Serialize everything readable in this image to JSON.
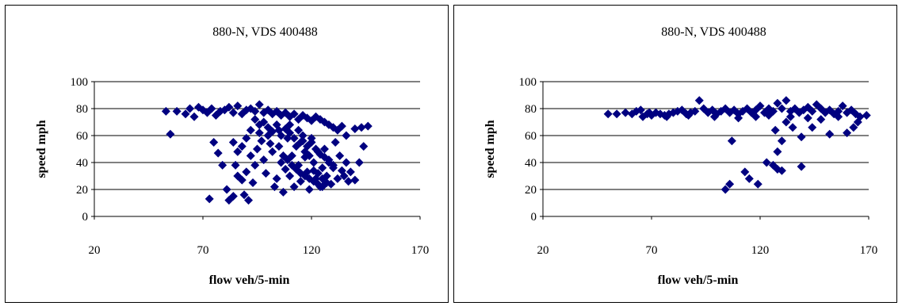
{
  "chart_data": [
    {
      "type": "scatter",
      "title": "880-N, VDS 400488",
      "xlabel": "flow veh/5-min",
      "ylabel": "speed mph",
      "xlim": [
        20,
        170
      ],
      "ylim": [
        0,
        100
      ],
      "xticks": [
        "20",
        "70",
        "120",
        "170"
      ],
      "yticks": [
        "0",
        "20",
        "40",
        "60",
        "80",
        "100"
      ],
      "grid": "horizontal",
      "marker": "diamond",
      "color": "#000080",
      "points": [
        [
          53,
          78
        ],
        [
          55,
          61
        ],
        [
          58,
          78
        ],
        [
          62,
          76
        ],
        [
          64,
          80
        ],
        [
          66,
          74
        ],
        [
          68,
          81
        ],
        [
          70,
          79
        ],
        [
          72,
          77
        ],
        [
          74,
          80
        ],
        [
          73,
          13
        ],
        [
          76,
          75
        ],
        [
          78,
          78
        ],
        [
          80,
          79
        ],
        [
          82,
          81
        ],
        [
          84,
          77
        ],
        [
          86,
          82
        ],
        [
          88,
          76
        ],
        [
          90,
          79
        ],
        [
          92,
          80
        ],
        [
          94,
          78
        ],
        [
          96,
          83
        ],
        [
          98,
          77
        ],
        [
          100,
          79
        ],
        [
          102,
          76
        ],
        [
          104,
          78
        ],
        [
          106,
          75
        ],
        [
          108,
          77
        ],
        [
          110,
          74
        ],
        [
          112,
          76
        ],
        [
          114,
          72
        ],
        [
          116,
          75
        ],
        [
          118,
          73
        ],
        [
          120,
          71
        ],
        [
          122,
          74
        ],
        [
          124,
          72
        ],
        [
          126,
          70
        ],
        [
          128,
          68
        ],
        [
          130,
          66
        ],
        [
          132,
          64
        ],
        [
          134,
          67
        ],
        [
          136,
          60
        ],
        [
          140,
          65
        ],
        [
          143,
          66
        ],
        [
          146,
          67
        ],
        [
          75,
          55
        ],
        [
          77,
          47
        ],
        [
          79,
          38
        ],
        [
          81,
          20
        ],
        [
          82,
          12
        ],
        [
          84,
          15
        ],
        [
          85,
          38
        ],
        [
          86,
          30
        ],
        [
          88,
          27
        ],
        [
          89,
          16
        ],
        [
          90,
          33
        ],
        [
          91,
          12
        ],
        [
          92,
          45
        ],
        [
          93,
          25
        ],
        [
          94,
          38
        ],
        [
          95,
          50
        ],
        [
          96,
          62
        ],
        [
          97,
          56
        ],
        [
          98,
          42
        ],
        [
          99,
          32
        ],
        [
          100,
          60
        ],
        [
          101,
          54
        ],
        [
          102,
          48
        ],
        [
          103,
          22
        ],
        [
          104,
          28
        ],
        [
          105,
          64
        ],
        [
          106,
          40
        ],
        [
          107,
          18
        ],
        [
          108,
          35
        ],
        [
          109,
          58
        ],
        [
          110,
          30
        ],
        [
          111,
          45
        ],
        [
          112,
          22
        ],
        [
          113,
          52
        ],
        [
          114,
          38
        ],
        [
          115,
          26
        ],
        [
          116,
          60
        ],
        [
          117,
          44
        ],
        [
          118,
          33
        ],
        [
          119,
          20
        ],
        [
          120,
          55
        ],
        [
          121,
          40
        ],
        [
          122,
          28
        ],
        [
          123,
          48
        ],
        [
          124,
          22
        ],
        [
          125,
          36
        ],
        [
          126,
          50
        ],
        [
          127,
          30
        ],
        [
          128,
          42
        ],
        [
          129,
          24
        ],
        [
          130,
          38
        ],
        [
          131,
          55
        ],
        [
          132,
          28
        ],
        [
          133,
          45
        ],
        [
          134,
          34
        ],
        [
          135,
          30
        ],
        [
          136,
          40
        ],
        [
          137,
          26
        ],
        [
          138,
          33
        ],
        [
          140,
          27
        ],
        [
          142,
          40
        ],
        [
          144,
          52
        ],
        [
          98,
          70
        ],
        [
          100,
          66
        ],
        [
          102,
          63
        ],
        [
          104,
          68
        ],
        [
          106,
          60
        ],
        [
          108,
          65
        ],
        [
          110,
          62
        ],
        [
          112,
          58
        ],
        [
          114,
          64
        ],
        [
          116,
          56
        ],
        [
          118,
          52
        ],
        [
          120,
          58
        ],
        [
          122,
          50
        ],
        [
          124,
          46
        ],
        [
          126,
          44
        ],
        [
          128,
          40
        ],
        [
          130,
          36
        ],
        [
          110,
          68
        ],
        [
          115,
          55
        ],
        [
          117,
          48
        ],
        [
          119,
          45
        ],
        [
          121,
          34
        ],
        [
          123,
          32
        ],
        [
          125,
          28
        ],
        [
          127,
          25
        ],
        [
          105,
          52
        ],
        [
          107,
          45
        ],
        [
          109,
          42
        ],
        [
          111,
          38
        ],
        [
          113,
          35
        ],
        [
          115,
          32
        ],
        [
          117,
          30
        ],
        [
          119,
          28
        ],
        [
          121,
          26
        ],
        [
          123,
          24
        ],
        [
          125,
          22
        ],
        [
          94,
          72
        ],
        [
          96,
          68
        ],
        [
          92,
          64
        ],
        [
          90,
          58
        ],
        [
          88,
          52
        ],
        [
          86,
          48
        ],
        [
          84,
          55
        ]
      ]
    },
    {
      "type": "scatter",
      "title": "880-N, VDS 400488",
      "xlabel": "flow veh/5-min",
      "ylabel": "speed mph",
      "xlim": [
        20,
        170
      ],
      "ylim": [
        0,
        100
      ],
      "xticks": [
        "20",
        "70",
        "120",
        "170"
      ],
      "yticks": [
        "0",
        "20",
        "40",
        "60",
        "80",
        "100"
      ],
      "grid": "horizontal",
      "marker": "diamond",
      "color": "#000080",
      "points": [
        [
          50,
          76
        ],
        [
          54,
          76
        ],
        [
          58,
          77
        ],
        [
          61,
          76
        ],
        [
          63,
          78
        ],
        [
          65,
          79
        ],
        [
          66,
          74
        ],
        [
          68,
          76
        ],
        [
          70,
          75
        ],
        [
          72,
          77
        ],
        [
          74,
          76
        ],
        [
          76,
          75
        ],
        [
          78,
          76
        ],
        [
          80,
          77
        ],
        [
          82,
          78
        ],
        [
          84,
          79
        ],
        [
          86,
          76
        ],
        [
          88,
          77
        ],
        [
          90,
          78
        ],
        [
          92,
          86
        ],
        [
          94,
          80
        ],
        [
          96,
          77
        ],
        [
          98,
          79
        ],
        [
          100,
          76
        ],
        [
          102,
          78
        ],
        [
          104,
          80
        ],
        [
          106,
          77
        ],
        [
          108,
          79
        ],
        [
          110,
          76
        ],
        [
          112,
          78
        ],
        [
          114,
          80
        ],
        [
          116,
          77
        ],
        [
          118,
          79
        ],
        [
          120,
          82
        ],
        [
          122,
          77
        ],
        [
          124,
          80
        ],
        [
          126,
          78
        ],
        [
          128,
          84
        ],
        [
          130,
          80
        ],
        [
          132,
          86
        ],
        [
          134,
          78
        ],
        [
          136,
          80
        ],
        [
          138,
          77
        ],
        [
          140,
          79
        ],
        [
          142,
          81
        ],
        [
          144,
          78
        ],
        [
          146,
          83
        ],
        [
          148,
          80
        ],
        [
          150,
          77
        ],
        [
          152,
          79
        ],
        [
          154,
          76
        ],
        [
          156,
          78
        ],
        [
          158,
          82
        ],
        [
          160,
          77
        ],
        [
          162,
          79
        ],
        [
          164,
          76
        ],
        [
          166,
          74
        ],
        [
          169,
          75
        ],
        [
          104,
          20
        ],
        [
          106,
          24
        ],
        [
          107,
          56
        ],
        [
          113,
          33
        ],
        [
          115,
          28
        ],
        [
          119,
          24
        ],
        [
          123,
          40
        ],
        [
          126,
          38
        ],
        [
          128,
          35
        ],
        [
          130,
          34
        ],
        [
          128,
          48
        ],
        [
          130,
          56
        ],
        [
          127,
          64
        ],
        [
          132,
          70
        ],
        [
          135,
          66
        ],
        [
          139,
          37
        ],
        [
          139,
          59
        ],
        [
          144,
          66
        ],
        [
          152,
          61
        ],
        [
          160,
          62
        ],
        [
          163,
          66
        ],
        [
          165,
          70
        ],
        [
          110,
          73
        ],
        [
          118,
          74
        ],
        [
          124,
          75
        ],
        [
          134,
          74
        ],
        [
          142,
          73
        ],
        [
          148,
          72
        ],
        [
          156,
          74
        ],
        [
          99,
          74
        ],
        [
          87,
          75
        ],
        [
          77,
          74
        ],
        [
          69,
          77
        ]
      ]
    }
  ]
}
